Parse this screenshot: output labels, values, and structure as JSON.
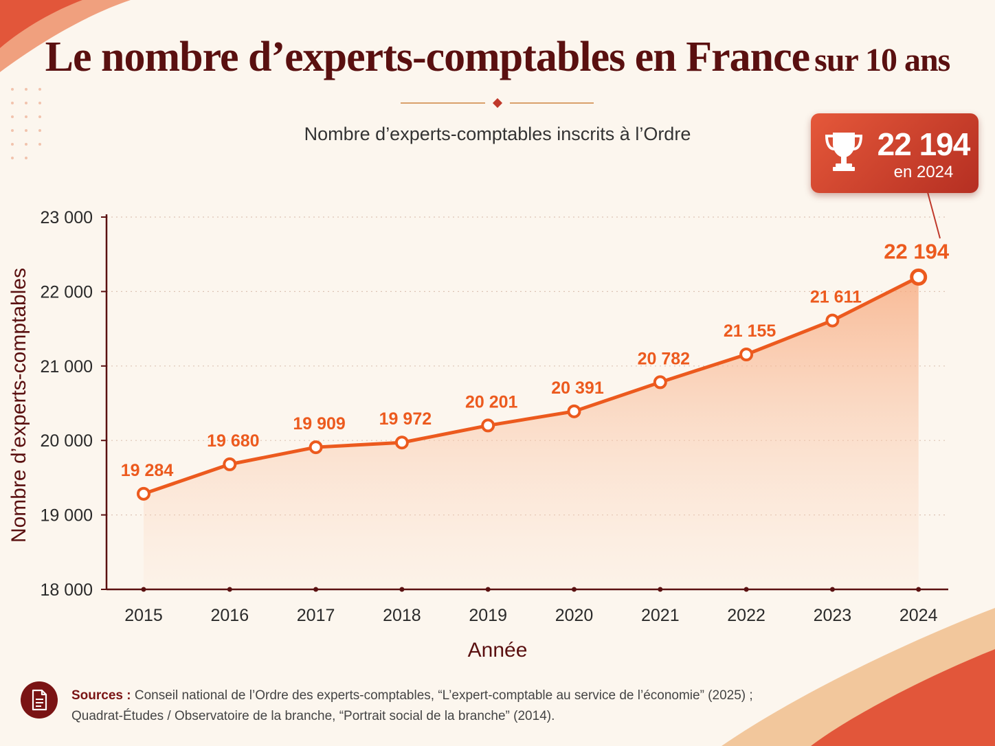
{
  "title": {
    "main": "Le nombre d’experts-comptables en France",
    "sub": "sur 10 ans"
  },
  "colors": {
    "accent": "#ec5a1e",
    "title": "#5a1010",
    "badge": "#d24a30",
    "background": "#fcf6ee"
  },
  "badge": {
    "icon": "trophy-icon",
    "value": "22 194",
    "year_label": "en 2024"
  },
  "chart_data": {
    "type": "line",
    "subtitle": "Nombre d’experts-comptables inscrits à l’Ordre",
    "xlabel": "Année",
    "ylabel": "Nombre d’experts-comptables",
    "x": [
      2015,
      2016,
      2017,
      2018,
      2019,
      2020,
      2021,
      2022,
      2023,
      2024
    ],
    "x_tick_labels": [
      "2015",
      "2016",
      "2017",
      "2018",
      "2019",
      "2020",
      "2021",
      "2022",
      "2023",
      "2024"
    ],
    "series": [
      {
        "values": [
          19284,
          19680,
          19909,
          19972,
          20201,
          20391,
          20782,
          21155,
          21611,
          22194
        ],
        "labels": [
          "19 284",
          "19 680",
          "19 909",
          "19 972",
          "20 201",
          "20 391",
          "20 782",
          "21 155",
          "21 611",
          "22 194"
        ]
      }
    ],
    "ylim": [
      18000,
      23000
    ],
    "y_ticks": [
      18000,
      19000,
      20000,
      21000,
      22000,
      23000
    ],
    "y_tick_labels": [
      "18 000",
      "19 000",
      "20 000",
      "21 000",
      "22 000",
      "23 000"
    ],
    "grid": "horizontal dotted",
    "area_fill": true
  },
  "sources": {
    "icon": "document-icon",
    "label": "Sources :",
    "line1": "Conseil national de l’Ordre des experts-comptables, “L’expert-comptable au service de l’économie” (2025) ;",
    "line2": "Quadrat-Études / Observatoire de la branche, “Portrait social de la branche” (2014)."
  }
}
